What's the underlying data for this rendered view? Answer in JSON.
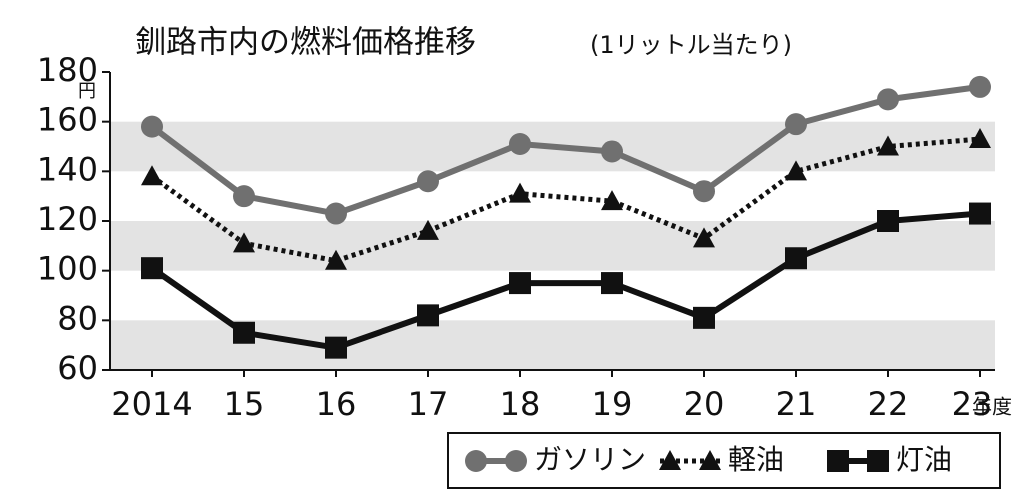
{
  "chart_data": {
    "type": "line",
    "title": "釧路市内の燃料価格推移",
    "subtitle": "(1リットル当たり)",
    "y_label": "円",
    "x_label": "年度",
    "categories": [
      "2014",
      "15",
      "16",
      "17",
      "18",
      "19",
      "20",
      "21",
      "22",
      "23"
    ],
    "ylim": [
      60,
      180
    ],
    "yticks": [
      60,
      80,
      100,
      120,
      140,
      160,
      180
    ],
    "bands": true,
    "series": [
      {
        "name": "ガソリン",
        "color": "#707070",
        "marker": "circle",
        "dash": false,
        "values": [
          158,
          130,
          123,
          136,
          151,
          148,
          132,
          159,
          169,
          174
        ]
      },
      {
        "name": "軽油",
        "color": "#111111",
        "marker": "triangle",
        "dash": true,
        "values": [
          138,
          111,
          104,
          116,
          131,
          128,
          113,
          140,
          150,
          153
        ]
      },
      {
        "name": "灯油",
        "color": "#111111",
        "marker": "square",
        "dash": false,
        "values": [
          101,
          75,
          69,
          82,
          95,
          95,
          81,
          105,
          120,
          123
        ]
      }
    ]
  }
}
